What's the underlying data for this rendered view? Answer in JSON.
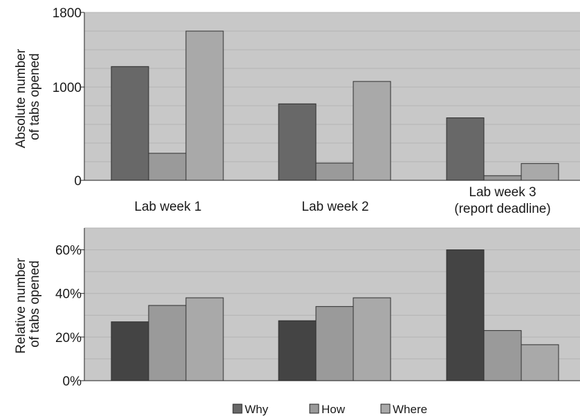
{
  "chart_data": [
    {
      "type": "bar",
      "ylabel_lines": [
        "Absolute number",
        "of tabs opened"
      ],
      "ylim": [
        0,
        1800
      ],
      "yticks": [
        0,
        1000,
        1800
      ],
      "yticks_text": [
        "0",
        "1000",
        "1800"
      ],
      "categories": [
        [
          "Lab week 1"
        ],
        [
          "Lab week 2"
        ],
        [
          "Lab week 3",
          "(report deadline)"
        ]
      ],
      "grid": true,
      "series": [
        {
          "name": "Why",
          "color": "#686868",
          "values": [
            1220,
            820,
            670
          ]
        },
        {
          "name": "How",
          "color": "#9a9a9a",
          "values": [
            290,
            185,
            50
          ]
        },
        {
          "name": "Where",
          "color": "#a9a9a9",
          "values": [
            1600,
            1060,
            180
          ]
        }
      ]
    },
    {
      "type": "bar",
      "ylabel_lines": [
        "Relative number",
        "of tabs opened"
      ],
      "ylim": [
        0,
        70
      ],
      "yticks": [
        0,
        20,
        40,
        60
      ],
      "yticks_text": [
        "0%",
        "20%",
        "40%",
        "60%"
      ],
      "grid": true,
      "series": [
        {
          "name": "Why",
          "color": "#444444",
          "values": [
            27,
            27.5,
            60
          ]
        },
        {
          "name": "How",
          "color": "#9a9a9a",
          "values": [
            34.5,
            34,
            23
          ]
        },
        {
          "name": "Where",
          "color": "#a9a9a9",
          "values": [
            38,
            38,
            16.5
          ]
        }
      ]
    }
  ],
  "legend": {
    "placement": "bottom-center",
    "items": [
      {
        "label": "Why",
        "color": "#686868"
      },
      {
        "label": "How",
        "color": "#9a9a9a"
      },
      {
        "label": "Where",
        "color": "#a9a9a9"
      }
    ]
  }
}
